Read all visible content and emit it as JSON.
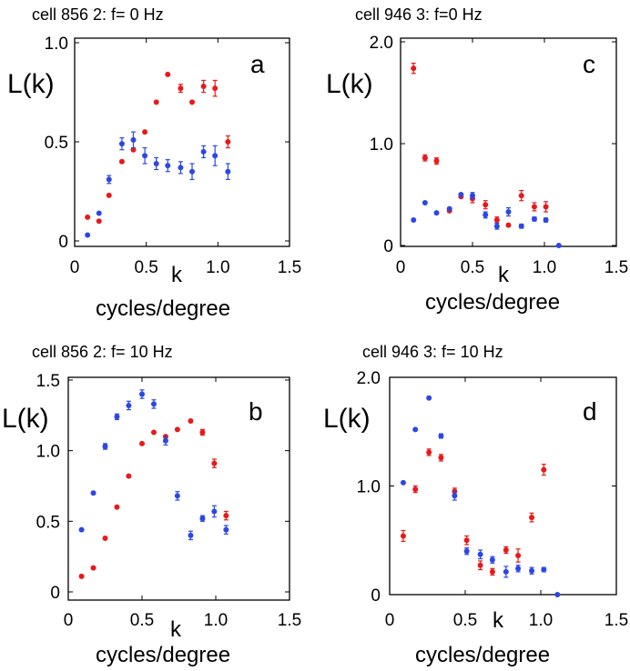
{
  "chart_data": [
    {
      "type": "scatter",
      "title": "cell 856 2: f= 0 Hz",
      "letter": "a",
      "ylabel": "L(k)",
      "xlabel_k": "k",
      "xlabel": "cycles/degree",
      "xlim": [
        0,
        1.5
      ],
      "ylim": [
        0,
        1.0
      ],
      "xticks": [
        {
          "v": 0,
          "label": "0"
        },
        {
          "v": 0.5,
          "label": "0.5"
        },
        {
          "v": 1.0,
          "label": "1.0"
        },
        {
          "v": 1.5,
          "label": "1.5"
        }
      ],
      "yticks": [
        {
          "v": 0,
          "label": "0"
        },
        {
          "v": 0.5,
          "label": "0.5"
        },
        {
          "v": 1.0,
          "label": "1.0"
        }
      ],
      "series": [
        {
          "name": "red",
          "color": "#e8191a",
          "points": [
            {
              "x": 0.09,
              "y": 0.12,
              "e": 0
            },
            {
              "x": 0.17,
              "y": 0.1,
              "e": 0
            },
            {
              "x": 0.24,
              "y": 0.23,
              "e": 0
            },
            {
              "x": 0.33,
              "y": 0.4,
              "e": 0
            },
            {
              "x": 0.41,
              "y": 0.46,
              "e": 0
            },
            {
              "x": 0.49,
              "y": 0.55,
              "e": 0
            },
            {
              "x": 0.57,
              "y": 0.7,
              "e": 0
            },
            {
              "x": 0.65,
              "y": 0.84,
              "e": 0
            },
            {
              "x": 0.74,
              "y": 0.77,
              "e": 0.02
            },
            {
              "x": 0.82,
              "y": 0.7,
              "e": 0
            },
            {
              "x": 0.9,
              "y": 0.78,
              "e": 0.03
            },
            {
              "x": 0.98,
              "y": 0.77,
              "e": 0.04
            },
            {
              "x": 1.07,
              "y": 0.5,
              "e": 0.03
            }
          ]
        },
        {
          "name": "blue",
          "color": "#2c47e3",
          "points": [
            {
              "x": 0.09,
              "y": 0.03,
              "e": 0
            },
            {
              "x": 0.17,
              "y": 0.14,
              "e": 0
            },
            {
              "x": 0.24,
              "y": 0.31,
              "e": 0.02
            },
            {
              "x": 0.33,
              "y": 0.49,
              "e": 0.03
            },
            {
              "x": 0.41,
              "y": 0.51,
              "e": 0.04
            },
            {
              "x": 0.49,
              "y": 0.43,
              "e": 0.04
            },
            {
              "x": 0.57,
              "y": 0.39,
              "e": 0.03
            },
            {
              "x": 0.65,
              "y": 0.38,
              "e": 0.03
            },
            {
              "x": 0.74,
              "y": 0.37,
              "e": 0.03
            },
            {
              "x": 0.82,
              "y": 0.35,
              "e": 0.04
            },
            {
              "x": 0.9,
              "y": 0.45,
              "e": 0.03
            },
            {
              "x": 0.98,
              "y": 0.43,
              "e": 0.05
            },
            {
              "x": 1.07,
              "y": 0.35,
              "e": 0.04
            }
          ]
        }
      ]
    },
    {
      "type": "scatter",
      "title": "cell 946 3: f=0 Hz",
      "letter": "c",
      "ylabel": "L(k)",
      "xlabel_k": "k",
      "xlabel": "cycles/degree",
      "xlim": [
        0,
        1.5
      ],
      "ylim": [
        0,
        2.0
      ],
      "xticks": [
        {
          "v": 0,
          "label": "0"
        },
        {
          "v": 0.5,
          "label": "0.5"
        },
        {
          "v": 1.0,
          "label": "1.0"
        },
        {
          "v": 1.5,
          "label": "1.5"
        }
      ],
      "yticks": [
        {
          "v": 0,
          "label": "0"
        },
        {
          "v": 1.0,
          "label": "1.0"
        },
        {
          "v": 2.0,
          "label": "2.0"
        }
      ],
      "series": [
        {
          "name": "red",
          "color": "#e8191a",
          "points": [
            {
              "x": 0.09,
              "y": 1.74,
              "e": 0.05
            },
            {
              "x": 0.17,
              "y": 0.86,
              "e": 0.03
            },
            {
              "x": 0.25,
              "y": 0.83,
              "e": 0.03
            },
            {
              "x": 0.34,
              "y": 0.34,
              "e": 0
            },
            {
              "x": 0.42,
              "y": 0.48,
              "e": 0
            },
            {
              "x": 0.5,
              "y": 0.46,
              "e": 0.04
            },
            {
              "x": 0.59,
              "y": 0.4,
              "e": 0.04
            },
            {
              "x": 0.67,
              "y": 0.25,
              "e": 0.03
            },
            {
              "x": 0.75,
              "y": 0.2,
              "e": 0
            },
            {
              "x": 0.84,
              "y": 0.49,
              "e": 0.05
            },
            {
              "x": 0.93,
              "y": 0.38,
              "e": 0.04
            },
            {
              "x": 1.01,
              "y": 0.38,
              "e": 0.05
            }
          ]
        },
        {
          "name": "blue",
          "color": "#2c47e3",
          "points": [
            {
              "x": 0.09,
              "y": 0.25,
              "e": 0
            },
            {
              "x": 0.17,
              "y": 0.42,
              "e": 0
            },
            {
              "x": 0.25,
              "y": 0.32,
              "e": 0
            },
            {
              "x": 0.34,
              "y": 0.36,
              "e": 0
            },
            {
              "x": 0.42,
              "y": 0.5,
              "e": 0
            },
            {
              "x": 0.5,
              "y": 0.49,
              "e": 0.03
            },
            {
              "x": 0.59,
              "y": 0.3,
              "e": 0.03
            },
            {
              "x": 0.67,
              "y": 0.19,
              "e": 0.03
            },
            {
              "x": 0.75,
              "y": 0.33,
              "e": 0.04
            },
            {
              "x": 0.84,
              "y": 0.19,
              "e": 0.02
            },
            {
              "x": 0.93,
              "y": 0.26,
              "e": 0.02
            },
            {
              "x": 1.01,
              "y": 0.25,
              "e": 0.02
            },
            {
              "x": 1.1,
              "y": 0.0,
              "e": 0
            }
          ]
        }
      ]
    },
    {
      "type": "scatter",
      "title": "cell 856 2: f= 10 Hz",
      "letter": "b",
      "ylabel": "L(k)",
      "xlabel_k": "k",
      "xlabel": "cycles/degree",
      "xlim": [
        0,
        1.5
      ],
      "ylim": [
        0,
        1.5
      ],
      "xticks": [
        {
          "v": 0,
          "label": "0"
        },
        {
          "v": 0.5,
          "label": "0.5"
        },
        {
          "v": 1.0,
          "label": "1.0"
        },
        {
          "v": 1.5,
          "label": "1.5"
        }
      ],
      "yticks": [
        {
          "v": 0,
          "label": "0"
        },
        {
          "v": 0.5,
          "label": "0.5"
        },
        {
          "v": 1.0,
          "label": "1.0"
        },
        {
          "v": 1.5,
          "label": "1.5"
        }
      ],
      "series": [
        {
          "name": "red",
          "color": "#e8191a",
          "points": [
            {
              "x": 0.09,
              "y": 0.11,
              "e": 0
            },
            {
              "x": 0.17,
              "y": 0.17,
              "e": 0
            },
            {
              "x": 0.25,
              "y": 0.38,
              "e": 0
            },
            {
              "x": 0.33,
              "y": 0.6,
              "e": 0
            },
            {
              "x": 0.41,
              "y": 0.82,
              "e": 0
            },
            {
              "x": 0.5,
              "y": 1.05,
              "e": 0
            },
            {
              "x": 0.58,
              "y": 1.13,
              "e": 0
            },
            {
              "x": 0.66,
              "y": 1.1,
              "e": 0
            },
            {
              "x": 0.74,
              "y": 1.15,
              "e": 0
            },
            {
              "x": 0.83,
              "y": 1.21,
              "e": 0
            },
            {
              "x": 0.91,
              "y": 1.13,
              "e": 0.02
            },
            {
              "x": 0.99,
              "y": 0.91,
              "e": 0.03
            },
            {
              "x": 1.07,
              "y": 0.54,
              "e": 0.03
            }
          ]
        },
        {
          "name": "blue",
          "color": "#2c47e3",
          "points": [
            {
              "x": 0.09,
              "y": 0.44,
              "e": 0
            },
            {
              "x": 0.17,
              "y": 0.7,
              "e": 0
            },
            {
              "x": 0.25,
              "y": 1.03,
              "e": 0.02
            },
            {
              "x": 0.33,
              "y": 1.24,
              "e": 0.02
            },
            {
              "x": 0.41,
              "y": 1.32,
              "e": 0.03
            },
            {
              "x": 0.5,
              "y": 1.4,
              "e": 0.03
            },
            {
              "x": 0.58,
              "y": 1.33,
              "e": 0.03
            },
            {
              "x": 0.66,
              "y": 1.07,
              "e": 0.03
            },
            {
              "x": 0.74,
              "y": 0.68,
              "e": 0.03
            },
            {
              "x": 0.83,
              "y": 0.4,
              "e": 0.03
            },
            {
              "x": 0.91,
              "y": 0.52,
              "e": 0.02
            },
            {
              "x": 0.99,
              "y": 0.57,
              "e": 0.04
            },
            {
              "x": 1.07,
              "y": 0.44,
              "e": 0.03
            }
          ]
        }
      ]
    },
    {
      "type": "scatter",
      "title": "cell 946 3: f= 10 Hz",
      "letter": "d",
      "ylabel": "L(k)",
      "xlabel_k": "k",
      "xlabel": "cycles/degree",
      "xlim": [
        0,
        1.5
      ],
      "ylim": [
        0,
        2.0
      ],
      "xticks": [
        {
          "v": 0,
          "label": "0"
        },
        {
          "v": 0.5,
          "label": "0.5"
        },
        {
          "v": 1.0,
          "label": "1.0"
        },
        {
          "v": 1.5,
          "label": "1.5"
        }
      ],
      "yticks": [
        {
          "v": 0,
          "label": "0"
        },
        {
          "v": 1.0,
          "label": "1.0"
        },
        {
          "v": 2.0,
          "label": "2.0"
        }
      ],
      "series": [
        {
          "name": "red",
          "color": "#e8191a",
          "points": [
            {
              "x": 0.09,
              "y": 0.54,
              "e": 0.05
            },
            {
              "x": 0.17,
              "y": 0.97,
              "e": 0.03
            },
            {
              "x": 0.26,
              "y": 1.31,
              "e": 0.03
            },
            {
              "x": 0.34,
              "y": 1.26,
              "e": 0.03
            },
            {
              "x": 0.43,
              "y": 0.95,
              "e": 0.03
            },
            {
              "x": 0.51,
              "y": 0.5,
              "e": 0.04
            },
            {
              "x": 0.6,
              "y": 0.27,
              "e": 0.04
            },
            {
              "x": 0.68,
              "y": 0.21,
              "e": 0.03
            },
            {
              "x": 0.77,
              "y": 0.41,
              "e": 0.03
            },
            {
              "x": 0.85,
              "y": 0.36,
              "e": 0.06
            },
            {
              "x": 0.94,
              "y": 0.71,
              "e": 0.04
            },
            {
              "x": 1.02,
              "y": 1.15,
              "e": 0.05
            }
          ]
        },
        {
          "name": "blue",
          "color": "#2c47e3",
          "points": [
            {
              "x": 0.09,
              "y": 1.03,
              "e": 0
            },
            {
              "x": 0.17,
              "y": 1.52,
              "e": 0
            },
            {
              "x": 0.26,
              "y": 1.81,
              "e": 0
            },
            {
              "x": 0.34,
              "y": 1.46,
              "e": 0.02
            },
            {
              "x": 0.43,
              "y": 0.91,
              "e": 0.04
            },
            {
              "x": 0.51,
              "y": 0.4,
              "e": 0.03
            },
            {
              "x": 0.6,
              "y": 0.37,
              "e": 0.04
            },
            {
              "x": 0.68,
              "y": 0.32,
              "e": 0.03
            },
            {
              "x": 0.77,
              "y": 0.21,
              "e": 0.05
            },
            {
              "x": 0.85,
              "y": 0.24,
              "e": 0.03
            },
            {
              "x": 0.94,
              "y": 0.22,
              "e": 0.03
            },
            {
              "x": 1.02,
              "y": 0.23,
              "e": 0.02
            },
            {
              "x": 1.11,
              "y": 0.0,
              "e": 0
            }
          ]
        }
      ]
    }
  ]
}
